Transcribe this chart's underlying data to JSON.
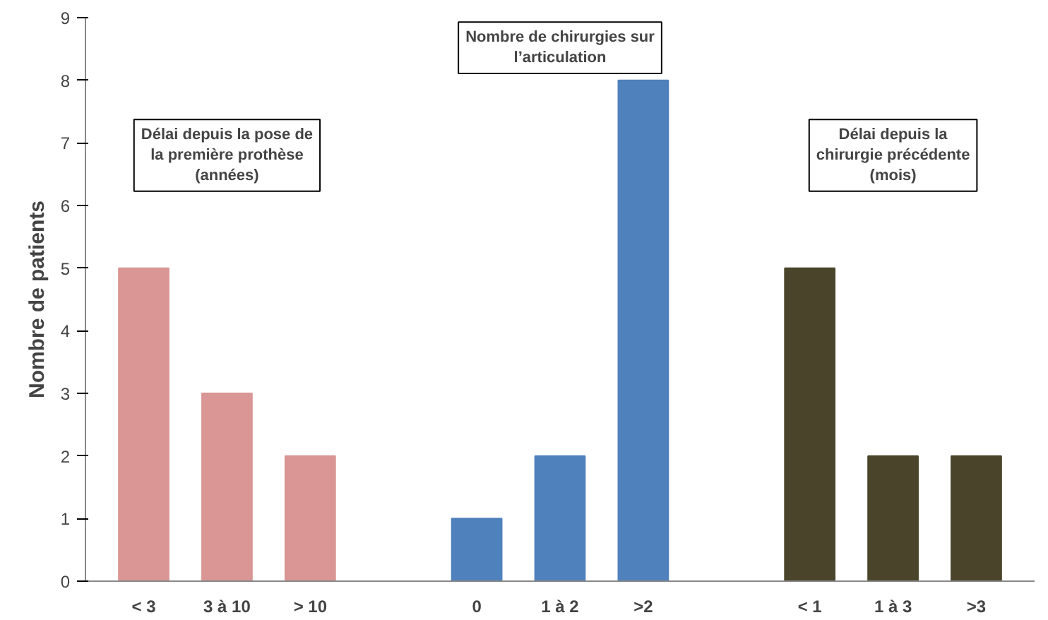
{
  "chart_data": {
    "type": "bar",
    "ylabel": "Nombre de patients",
    "categories": [
      "< 3",
      "3 à 10",
      "> 10",
      null,
      "0",
      "1 à 2",
      ">2",
      null,
      "< 1",
      "1 à 3",
      ">3"
    ],
    "values": [
      5,
      3,
      2,
      null,
      1,
      2,
      8,
      null,
      5,
      2,
      2
    ],
    "colors": [
      "#d99694",
      "#d99694",
      "#d99694",
      null,
      "#4f81bd",
      "#4f81bd",
      "#4f81bd",
      null,
      "#4a452a",
      "#4a452a",
      "#4a452a"
    ],
    "ylim": [
      0,
      9
    ],
    "yticks": [
      0,
      1,
      2,
      3,
      4,
      5,
      6,
      7,
      8,
      9
    ],
    "grid": false,
    "annotations": [
      "Délai depuis la pose de\nla première prothèse\n(années)",
      "Nombre de chirurgies sur\nl’articulation",
      "Délai depuis la\nchirurgie précédente\n(mois)"
    ]
  }
}
